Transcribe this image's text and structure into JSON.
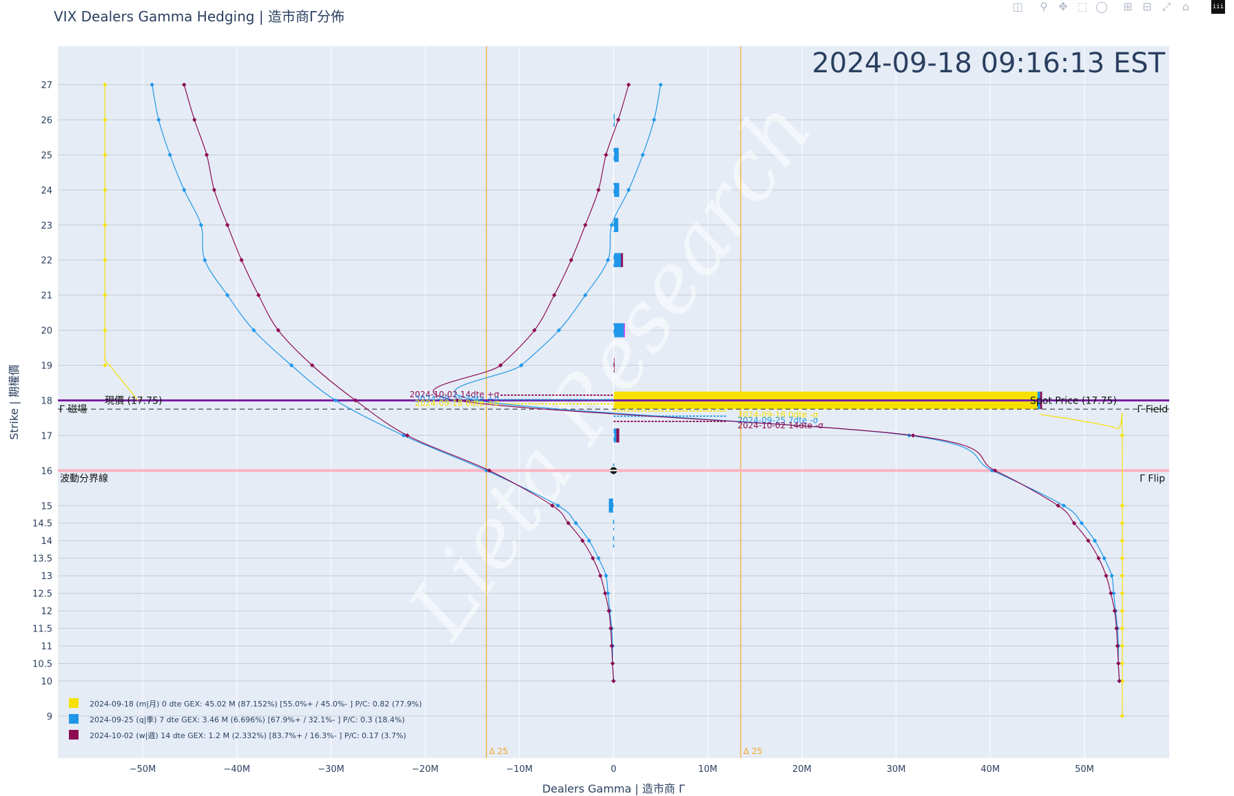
{
  "title": "VIX Dealers Gamma Hedging | 造市商Γ分佈",
  "modebar": [
    "camera-icon",
    "zoom-icon",
    "pan-icon",
    "box-select-icon",
    "lasso-icon",
    "zoom-in-icon",
    "zoom-out-icon",
    "autoscale-icon",
    "reset-axes-icon"
  ],
  "logo_text": "iii",
  "colors": {
    "plot_bg": "#e5ecf6",
    "yellow": "#f7e000",
    "blue": "#1f96e8",
    "purple": "#8b0a50",
    "orange": "#f5a623",
    "spot": "#7b1fa2",
    "flip": "#ffb3c1"
  },
  "chart_data": {
    "type": "bar",
    "timestamp": "2024-09-18 09:16:13 EST",
    "watermark": "Lieta Research",
    "xlabel": "Dealers Gamma | 造市商 Γ",
    "ylabel": "Strike | 期權價",
    "xlim": [
      -59,
      59
    ],
    "ylim": [
      7.8,
      28.1
    ],
    "xticks": [
      {
        "v": -50,
        "label": "−50M"
      },
      {
        "v": -40,
        "label": "−40M"
      },
      {
        "v": -30,
        "label": "−30M"
      },
      {
        "v": -20,
        "label": "−20M"
      },
      {
        "v": -10,
        "label": "−10M"
      },
      {
        "v": 0,
        "label": "0"
      },
      {
        "v": 10,
        "label": "10M"
      },
      {
        "v": 20,
        "label": "20M"
      },
      {
        "v": 30,
        "label": "30M"
      },
      {
        "v": 40,
        "label": "40M"
      },
      {
        "v": 50,
        "label": "50M"
      }
    ],
    "yticks": [
      {
        "v": 27,
        "label": "27"
      },
      {
        "v": 26,
        "label": "26"
      },
      {
        "v": 25,
        "label": "25"
      },
      {
        "v": 24,
        "label": "24"
      },
      {
        "v": 23,
        "label": "23"
      },
      {
        "v": 22,
        "label": "22"
      },
      {
        "v": 21,
        "label": "21"
      },
      {
        "v": 20,
        "label": "20"
      },
      {
        "v": 19,
        "label": "19"
      },
      {
        "v": 18,
        "label": "18"
      },
      {
        "v": 17,
        "label": "17"
      },
      {
        "v": 16,
        "label": "16"
      },
      {
        "v": 15,
        "label": "15"
      },
      {
        "v": 14.5,
        "label": "14.5"
      },
      {
        "v": 14,
        "label": "14"
      },
      {
        "v": 13.5,
        "label": "13.5"
      },
      {
        "v": 13,
        "label": "13"
      },
      {
        "v": 12.5,
        "label": "12.5"
      },
      {
        "v": 12,
        "label": "12"
      },
      {
        "v": 11.5,
        "label": "11.5"
      },
      {
        "v": 11,
        "label": "11"
      },
      {
        "v": 10.5,
        "label": "10.5"
      },
      {
        "v": 10,
        "label": "10"
      },
      {
        "v": 9,
        "label": "9"
      }
    ],
    "bars": [
      {
        "strike": 26,
        "x0": 0,
        "x1": 0.05,
        "color": "#1f96e8",
        "h": 0.4
      },
      {
        "strike": 25,
        "x0": 0,
        "x1": 0.55,
        "color": "#1f96e8",
        "h": 0.4
      },
      {
        "strike": 24,
        "x0": 0,
        "x1": 0.6,
        "color": "#1f96e8",
        "h": 0.4
      },
      {
        "strike": 23,
        "x0": 0,
        "x1": 0.5,
        "color": "#1f96e8",
        "h": 0.4
      },
      {
        "strike": 22,
        "x0": 0,
        "x1": 0.8,
        "color": "#1f96e8",
        "h": 0.4
      },
      {
        "strike": 22,
        "x0": 0.8,
        "x1": 1.0,
        "color": "#8b0a50",
        "h": 0.4
      },
      {
        "strike": 20,
        "x0": 0,
        "x1": 1.1,
        "color": "#1f96e8",
        "h": 0.4
      },
      {
        "strike": 20,
        "x0": 1.1,
        "x1": 1.2,
        "color": "#e040fb",
        "h": 0.4
      },
      {
        "strike": 19,
        "x0": 0,
        "x1": 0.1,
        "color": "#8b0a50",
        "h": 0.4
      },
      {
        "strike": 17,
        "x0": 0,
        "x1": 0.3,
        "color": "#1f96e8",
        "h": 0.4
      },
      {
        "strike": 17,
        "x0": 0.3,
        "x1": 0.6,
        "color": "#8b0a50",
        "h": 0.4
      },
      {
        "strike": 16,
        "x0": -0.05,
        "x1": 0,
        "color": "#1f96e8",
        "h": 0.4
      },
      {
        "strike": 15,
        "x0": -0.5,
        "x1": 0,
        "color": "#1f96e8",
        "h": 0.4
      },
      {
        "strike": 14.5,
        "x0": -0.05,
        "x1": 0,
        "color": "#1f96e8",
        "h": 0.4
      },
      {
        "strike": 14,
        "x0": -0.05,
        "x1": 0,
        "color": "#1f96e8",
        "h": 0.4
      },
      {
        "strike": 18,
        "x0": 0,
        "x1": 45.02,
        "color": "#f7e000",
        "h": 0.5
      },
      {
        "strike": 18,
        "x0": 45.02,
        "x1": 45.3,
        "color": "#1f96e8",
        "h": 0.5
      },
      {
        "strike": 18,
        "x0": 45.3,
        "x1": 45.5,
        "color": "#8b0a50",
        "h": 0.5
      }
    ],
    "series": [
      {
        "name": "2024-09-18 (m|月)",
        "color": "#f7e000",
        "points": [
          [
            -54,
            27
          ],
          [
            -54,
            26
          ],
          [
            -54,
            25
          ],
          [
            -54,
            24
          ],
          [
            -54,
            23
          ],
          [
            -54,
            22
          ],
          [
            -54,
            21
          ],
          [
            -54,
            20
          ],
          [
            -54,
            19
          ]
        ],
        "curve": [
          [
            -54,
            27
          ],
          [
            -54,
            20
          ],
          [
            -54,
            19.2
          ],
          [
            -53.5,
            19
          ],
          [
            -52,
            18.5
          ],
          [
            -50.5,
            18
          ]
        ],
        "mirror_points": [
          [
            54,
            17
          ],
          [
            54,
            15
          ],
          [
            54,
            14.5
          ],
          [
            54,
            14
          ],
          [
            54,
            13.5
          ],
          [
            54,
            13
          ],
          [
            54,
            12.5
          ],
          [
            54,
            12
          ],
          [
            54,
            11.5
          ],
          [
            54,
            11
          ],
          [
            54,
            10.5
          ],
          [
            54,
            10
          ],
          [
            54,
            9
          ]
        ],
        "mirror_curve": [
          [
            45.3,
            17.6
          ],
          [
            50,
            17.4
          ],
          [
            53.5,
            17.2
          ],
          [
            54,
            17
          ],
          [
            54,
            9
          ]
        ]
      },
      {
        "name": "2024-09-25 (q|季)",
        "color": "#1f96e8",
        "points": [
          [
            -49,
            27
          ],
          [
            -48.3,
            26
          ],
          [
            -47.1,
            25
          ],
          [
            -45.6,
            24
          ],
          [
            -43.8,
            23
          ],
          [
            -43.4,
            22
          ],
          [
            -41,
            21
          ],
          [
            -38.2,
            20
          ],
          [
            -34.2,
            19
          ],
          [
            -29.5,
            18
          ],
          [
            -22.3,
            17
          ],
          [
            -13.5,
            16
          ],
          [
            -5.9,
            15
          ],
          [
            -4,
            14.5
          ],
          [
            -2.6,
            14
          ],
          [
            -1.6,
            13.5
          ],
          [
            -0.8,
            13
          ],
          [
            -0.6,
            12.5
          ],
          [
            -0.4,
            12
          ],
          [
            -0.2,
            11.5
          ],
          [
            -0.1,
            11
          ],
          [
            -0.1,
            10.5
          ],
          [
            0,
            10
          ]
        ],
        "mirror": true
      },
      {
        "name": "2024-10-02 (w|週)",
        "color": "#8b0a50",
        "points": [
          [
            -45.6,
            27
          ],
          [
            -44.5,
            26
          ],
          [
            -43.2,
            25
          ],
          [
            -42.4,
            24
          ],
          [
            -41,
            23
          ],
          [
            -39.5,
            22
          ],
          [
            -37.7,
            21
          ],
          [
            -35.6,
            20
          ],
          [
            -32,
            19
          ],
          [
            -27.4,
            18
          ],
          [
            -21.9,
            17
          ],
          [
            -13.2,
            16
          ],
          [
            -6.5,
            15
          ],
          [
            -4.8,
            14.5
          ],
          [
            -3.3,
            14
          ],
          [
            -2.2,
            13.5
          ],
          [
            -1.4,
            13
          ],
          [
            -0.9,
            12.5
          ],
          [
            -0.5,
            12
          ],
          [
            -0.3,
            11.5
          ],
          [
            -0.2,
            11
          ],
          [
            -0.1,
            10.5
          ],
          [
            0,
            10
          ]
        ],
        "mirror": true
      }
    ],
    "mirror_offset": 53.7,
    "spot": {
      "value": 17.75,
      "y": 18,
      "label_left": "現價 (17.75)",
      "label_right": "Spot Price (17.75)"
    },
    "gamma_field": {
      "y": 17.75,
      "label_left": "Γ 磁場",
      "label_right": "Γ Field"
    },
    "gamma_flip": {
      "y": 16,
      "label_left": "波動分界線",
      "label_right": "Γ Flip"
    },
    "delta_lines": [
      {
        "x": -13.5,
        "label": "Δ 25"
      },
      {
        "x": 13.5,
        "label": "Δ 25"
      }
    ],
    "sigma_lines": [
      {
        "y": 18.15,
        "x0": -12,
        "x1": 0,
        "color": "#8b0a50",
        "label": "2024-10-02 14dte +σ",
        "side": "left"
      },
      {
        "y": 18.02,
        "x0": -12,
        "x1": 0,
        "color": "#1f96e8",
        "label": "2024-09-25 7dte +σ",
        "side": "left"
      },
      {
        "y": 17.9,
        "x0": -12,
        "x1": 0,
        "color": "#f7e000",
        "label": "2024-09-18 0dte +σ",
        "side": "left"
      },
      {
        "y": 17.7,
        "x0": 0,
        "x1": 12,
        "color": "#f7e000",
        "label": "2024-09-18 0dte -σ",
        "side": "right"
      },
      {
        "y": 17.55,
        "x0": 0,
        "x1": 12,
        "color": "#1f96e8",
        "label": "2024-09-25 7dte -σ",
        "side": "right"
      },
      {
        "y": 17.4,
        "x0": 0,
        "x1": 12,
        "color": "#8b0a50",
        "label": "2024-10-02 14dte -σ",
        "side": "right"
      }
    ],
    "legend": [
      {
        "color": "#f7e000",
        "text": "2024-09-18 (m|月)   0 dte   GEX: 45.02 M (87.152%)     [55.0%+ / 45.0%- ]      P/C: 0.82   (77.9%)"
      },
      {
        "color": "#1f96e8",
        "text": "2024-09-25 (q|季)   7 dte   GEX: 3.46 M (6.696%)      [67.9%+ / 32.1%- ]      P/C: 0.3   (18.4%)"
      },
      {
        "color": "#8b0a50",
        "text": "2024-10-02 (w|週)   14 dte   GEX: 1.2 M (2.332%)      [83.7%+ / 16.3%- ]      P/C: 0.17   (3.7%)"
      }
    ]
  }
}
